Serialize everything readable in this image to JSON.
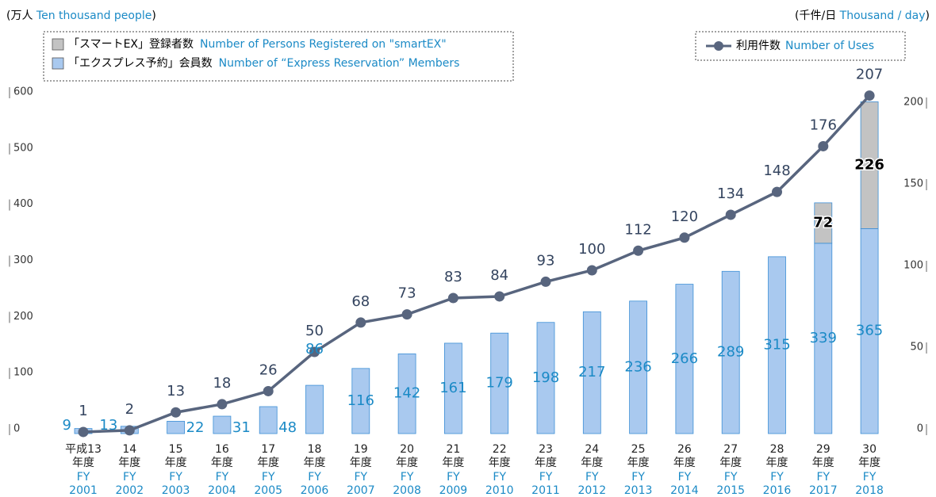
{
  "chart_data": {
    "type": "bar_line",
    "y_unit": {
      "jp": "(万人",
      "en": "Ten thousand people",
      "close": ")"
    },
    "y2_unit": {
      "jp": "(千件/日",
      "en": "Thousand / day",
      "close": ")"
    },
    "categories": [
      "2001",
      "2002",
      "2003",
      "2004",
      "2005",
      "2006",
      "2007",
      "2008",
      "2009",
      "2010",
      "2011",
      "2012",
      "2013",
      "2014",
      "2015",
      "2016",
      "2017",
      "2018"
    ],
    "category_era": [
      "平成13",
      "14",
      "15",
      "16",
      "17",
      "18",
      "19",
      "20",
      "21",
      "22",
      "23",
      "24",
      "25",
      "26",
      "27",
      "28",
      "29",
      "30"
    ],
    "category_suffix": "年度",
    "category_prefix": "FY",
    "series": [
      {
        "name": "「エクスプレス予約」会員数",
        "name_en": "Number of “Express Reservation” Members",
        "color": "#a9c9ef",
        "stroke": "#3d8fd6",
        "kind": "bar",
        "values": [
          9,
          13,
          22,
          31,
          48,
          86,
          116,
          142,
          161,
          179,
          198,
          217,
          236,
          266,
          289,
          315,
          339,
          365
        ]
      },
      {
        "name": "「スマートEX」登録者数",
        "name_en": "Number of Persons Registered on \"smartEX\"",
        "color": "#c3c3c3",
        "stroke": "#3d8fd6",
        "kind": "bar",
        "values": [
          null,
          null,
          null,
          null,
          null,
          null,
          null,
          null,
          null,
          null,
          null,
          null,
          null,
          null,
          null,
          null,
          72,
          226
        ]
      },
      {
        "name": "利用件数",
        "name_en": "Number of Uses",
        "color": "#58657e",
        "kind": "line",
        "axis": "y2",
        "values": [
          1,
          2,
          13,
          18,
          26,
          50,
          68,
          73,
          83,
          84,
          93,
          100,
          112,
          120,
          134,
          148,
          176,
          207
        ]
      }
    ],
    "ylim": [
      0,
      600
    ],
    "yticks": [
      0,
      100,
      200,
      300,
      400,
      500,
      600
    ],
    "y2lim": [
      0,
      200
    ],
    "y2ticks": [
      0,
      50,
      100,
      150,
      200
    ]
  }
}
